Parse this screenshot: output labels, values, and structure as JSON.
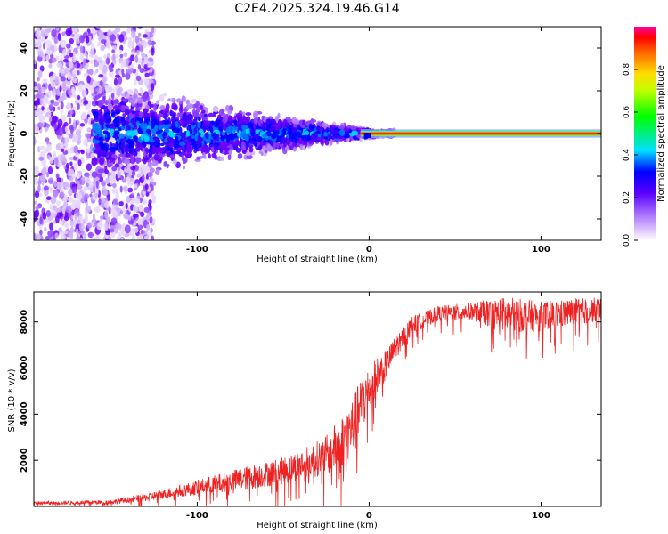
{
  "title": "C2E4.2025.324.19.46.G14",
  "chart_data": [
    {
      "type": "heatmap",
      "xlabel": "Height of straight line (km)",
      "ylabel": "Frequency (Hz)",
      "xlim": [
        -195,
        135
      ],
      "ylim": [
        -50,
        50
      ],
      "xticks": [
        -100,
        0,
        100
      ],
      "yticks": [
        -40,
        -20,
        0,
        20,
        40
      ],
      "colorbar": {
        "label": "Normalized spectral amplitude",
        "range": [
          0,
          1
        ],
        "ticks": [
          0.0,
          0.2,
          0.4,
          0.6,
          0.8
        ],
        "tick_labels": [
          "0.0",
          "0.2",
          "0.4",
          "0.6",
          "0.8"
        ]
      },
      "description_points": {
        "line_start_km": 0,
        "line_freq_hz": 0,
        "scatter_region_km": [
          -195,
          15
        ]
      }
    },
    {
      "type": "line",
      "xlabel": "Height of straight line (km)",
      "ylabel": "SNR (10 * v/v)",
      "xlim": [
        -195,
        135
      ],
      "ylim": [
        0,
        9300
      ],
      "xticks": [
        -100,
        0,
        100
      ],
      "yticks": [
        2000,
        4000,
        6000,
        8000
      ],
      "color": "#ee2222",
      "series": [
        {
          "name": "SNR",
          "x": [
            -195,
            -170,
            -150,
            -130,
            -110,
            -90,
            -70,
            -50,
            -35,
            -25,
            -15,
            -8,
            -4,
            0,
            5,
            10,
            15,
            25,
            40,
            60,
            80,
            100,
            120,
            135
          ],
          "y": [
            150,
            170,
            200,
            400,
            700,
            1000,
            1300,
            1600,
            2000,
            2300,
            3000,
            3800,
            4600,
            5200,
            5800,
            6200,
            6900,
            7900,
            8400,
            8500,
            8400,
            8300,
            8500,
            8600
          ],
          "spread": [
            100,
            120,
            150,
            250,
            400,
            600,
            800,
            900,
            1100,
            1300,
            1800,
            2000,
            2000,
            1500,
            1200,
            1000,
            800,
            600,
            500,
            600,
            1200,
            1000,
            900,
            800
          ]
        }
      ]
    }
  ]
}
